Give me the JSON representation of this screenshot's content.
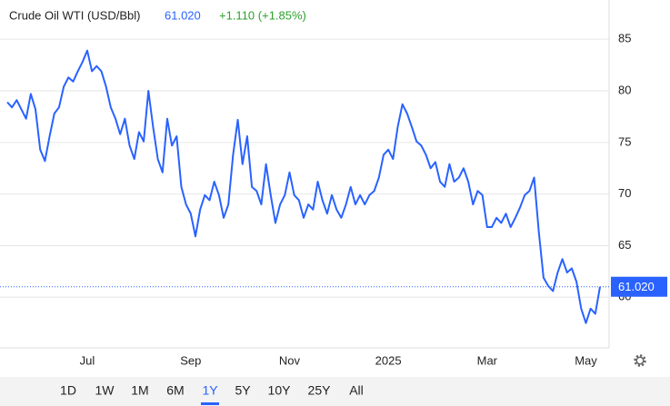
{
  "chart_data": {
    "type": "line",
    "title": "Crude Oil WTI (USD/Bbl)",
    "price": "61.020",
    "change": "+1.110 (+1.85%)",
    "categories": [
      null,
      null,
      null,
      null,
      null,
      null,
      null,
      null,
      null,
      null,
      null,
      null,
      null,
      null,
      null,
      null,
      null,
      "Jul",
      null,
      null,
      null,
      null,
      null,
      null,
      null,
      null,
      null,
      null,
      null,
      null,
      null,
      null,
      null,
      null,
      null,
      null,
      null,
      null,
      null,
      "Sep",
      null,
      null,
      null,
      null,
      null,
      null,
      null,
      null,
      null,
      null,
      null,
      null,
      null,
      null,
      null,
      null,
      null,
      null,
      null,
      null,
      "Nov",
      null,
      null,
      null,
      null,
      null,
      null,
      null,
      null,
      null,
      null,
      null,
      null,
      null,
      null,
      null,
      null,
      null,
      null,
      null,
      null,
      "2025",
      null,
      null,
      null,
      null,
      null,
      null,
      null,
      null,
      null,
      null,
      null,
      null,
      null,
      null,
      null,
      null,
      null,
      null,
      null,
      null,
      "Mar",
      null,
      null,
      null,
      null,
      null,
      null,
      null,
      null,
      null,
      null,
      null,
      null,
      null,
      null,
      null,
      null,
      null,
      null,
      null,
      null,
      "May",
      null,
      null,
      null
    ],
    "series": [
      {
        "color": "#2962ff",
        "values": [
          78.9,
          78.4,
          79.1,
          78.2,
          77.3,
          79.7,
          78.2,
          74.3,
          73.2,
          75.6,
          77.8,
          78.4,
          80.4,
          81.3,
          80.9,
          81.9,
          82.8,
          83.9,
          81.9,
          82.4,
          81.9,
          80.4,
          78.4,
          77.3,
          75.8,
          77.3,
          74.7,
          73.4,
          76.0,
          75.1,
          80.0,
          76.5,
          73.4,
          72.1,
          77.3,
          74.7,
          75.6,
          70.7,
          69.0,
          68.1,
          65.9,
          68.5,
          69.9,
          69.4,
          71.2,
          69.9,
          67.7,
          69.0,
          73.8,
          77.2,
          72.9,
          75.6,
          70.7,
          70.3,
          69.0,
          72.9,
          69.9,
          67.2,
          69.0,
          69.9,
          72.1,
          69.9,
          69.4,
          67.7,
          69.0,
          68.5,
          71.2,
          69.4,
          68.1,
          69.9,
          68.5,
          67.7,
          69.0,
          70.7,
          69.0,
          69.9,
          69.0,
          69.9,
          70.3,
          71.6,
          73.8,
          74.3,
          73.4,
          76.5,
          78.7,
          77.8,
          76.5,
          75.1,
          74.7,
          73.8,
          72.5,
          73.1,
          71.2,
          70.7,
          72.9,
          71.2,
          71.6,
          72.5,
          71.2,
          69.0,
          70.3,
          69.9,
          66.8,
          66.8,
          67.7,
          67.2,
          68.1,
          66.8,
          67.7,
          68.7,
          69.9,
          70.3,
          71.6,
          66.3,
          61.9,
          61.1,
          60.6,
          62.4,
          63.7,
          62.4,
          62.8,
          61.5,
          58.9,
          57.5,
          58.9,
          58.4,
          61.02
        ]
      }
    ],
    "ylim": [
      55.1,
      88.8
    ],
    "yticks": [
      60,
      65,
      70,
      75,
      80,
      85
    ],
    "grid": true,
    "ranges": [
      "1D",
      "1W",
      "1M",
      "6M",
      "1Y",
      "5Y",
      "10Y",
      "25Y",
      "All"
    ],
    "selected_range": "1Y"
  }
}
